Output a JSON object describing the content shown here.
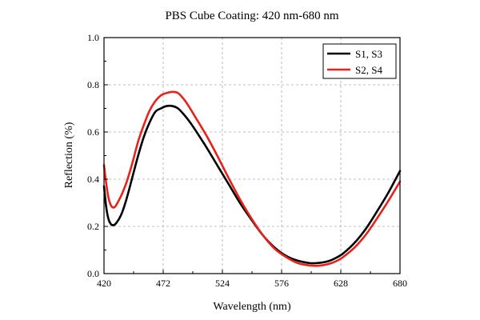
{
  "chart_data": {
    "type": "line",
    "title": "PBS Cube Coating: 420 nm-680 nm",
    "xlabel": "Wavelength (nm)",
    "ylabel": "Reflection (%)",
    "xlim": [
      420,
      680
    ],
    "ylim": [
      0,
      1.0
    ],
    "x_ticks": [
      420,
      472,
      524,
      576,
      628,
      680
    ],
    "x_tick_labels": [
      "420",
      "472",
      "524",
      "576",
      "628",
      "680"
    ],
    "y_ticks": [
      0,
      0.2,
      0.4,
      0.6,
      0.8,
      1.0
    ],
    "y_tick_labels": [
      "0.0",
      "0.2",
      "0.4",
      "0.6",
      "0.8",
      "1.0"
    ],
    "grid": true,
    "legend_position": "top-right",
    "series": [
      {
        "name": "S1, S3",
        "color": "#000000",
        "x": [
          420,
          422,
          424,
          426,
          428,
          430,
          433,
          436,
          440,
          445,
          450,
          455,
          460,
          465,
          470,
          475,
          480,
          485,
          490,
          495,
          500,
          510,
          520,
          530,
          540,
          550,
          560,
          570,
          580,
          590,
          600,
          605,
          610,
          615,
          620,
          625,
          630,
          640,
          650,
          660,
          670,
          680
        ],
        "y": [
          0.37,
          0.28,
          0.23,
          0.21,
          0.205,
          0.21,
          0.23,
          0.26,
          0.32,
          0.41,
          0.5,
          0.58,
          0.64,
          0.685,
          0.7,
          0.71,
          0.71,
          0.7,
          0.675,
          0.645,
          0.61,
          0.535,
          0.455,
          0.375,
          0.295,
          0.225,
          0.16,
          0.11,
          0.075,
          0.055,
          0.045,
          0.044,
          0.046,
          0.05,
          0.058,
          0.07,
          0.085,
          0.13,
          0.19,
          0.265,
          0.345,
          0.435
        ]
      },
      {
        "name": "S2, S4",
        "color": "#e8221a",
        "x": [
          420,
          422,
          424,
          426,
          428,
          430,
          433,
          436,
          440,
          445,
          450,
          455,
          460,
          465,
          470,
          475,
          480,
          485,
          490,
          495,
          500,
          510,
          520,
          530,
          540,
          550,
          560,
          570,
          580,
          590,
          600,
          605,
          610,
          615,
          620,
          625,
          630,
          640,
          650,
          660,
          670,
          680
        ],
        "y": [
          0.46,
          0.38,
          0.32,
          0.29,
          0.28,
          0.285,
          0.31,
          0.34,
          0.39,
          0.47,
          0.56,
          0.63,
          0.69,
          0.73,
          0.755,
          0.765,
          0.77,
          0.765,
          0.74,
          0.705,
          0.665,
          0.585,
          0.495,
          0.4,
          0.31,
          0.23,
          0.16,
          0.105,
          0.07,
          0.045,
          0.035,
          0.033,
          0.034,
          0.038,
          0.045,
          0.055,
          0.07,
          0.11,
          0.165,
          0.235,
          0.31,
          0.39
        ]
      }
    ]
  }
}
